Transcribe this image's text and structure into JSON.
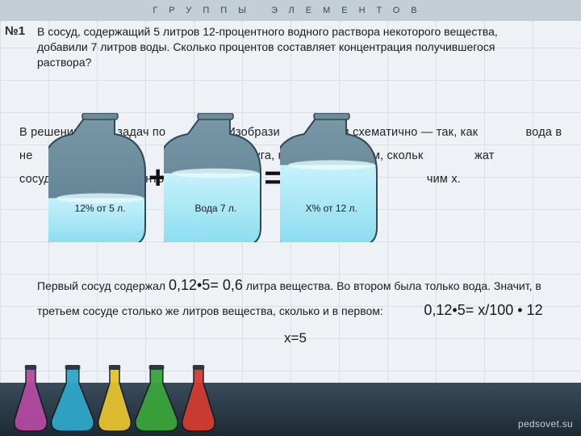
{
  "bgHeader": "ГРУППЫ   ЭЛЕМЕНТОВ",
  "problemNumber": "№1",
  "problemText": "В сосуд, содержащий 5 литров 12-процентного водного раствора некоторого вещества, добавили 7 литров воды. Сколько процентов составляет концентрация получившегося раствора?",
  "fadedText": "В решении таких задач по                . Изобрази              ром схематично — так, как              вода в не               ы между                ы друг от друга, как в ко             ем, скольк               жат сосуд                  процентов вещества. Кон                  ившегося                 чим x.",
  "flasks": {
    "fillColor": "#8adcf0",
    "bodyColor": "#5b7d8e",
    "strokeColor": "#2f4a57",
    "items": [
      {
        "label": "12% от 5 л.",
        "fillRatio": 0.38
      },
      {
        "label": "Вода 7 л.",
        "fillRatio": 0.62
      },
      {
        "label": "X% от 12 л.",
        "fillRatio": 0.7
      }
    ],
    "ops": [
      "+",
      "="
    ]
  },
  "solution": {
    "line1a": "Первый сосуд содержал ",
    "calc1": "0,12•5= 0,6",
    "line1b": " литра вещества. Во втором была только вода. Значит, в третьем сосуде столько же литров вещества, сколько и в первом:",
    "calc2block": "0,12•5= x/100 • 12",
    "answer": "x=5"
  },
  "watermark": "pedsovet.su",
  "bottomFlaskColors": [
    "#b44aa0",
    "#2fa6c9",
    "#e6c22f",
    "#3aa33a",
    "#d23b2f"
  ]
}
